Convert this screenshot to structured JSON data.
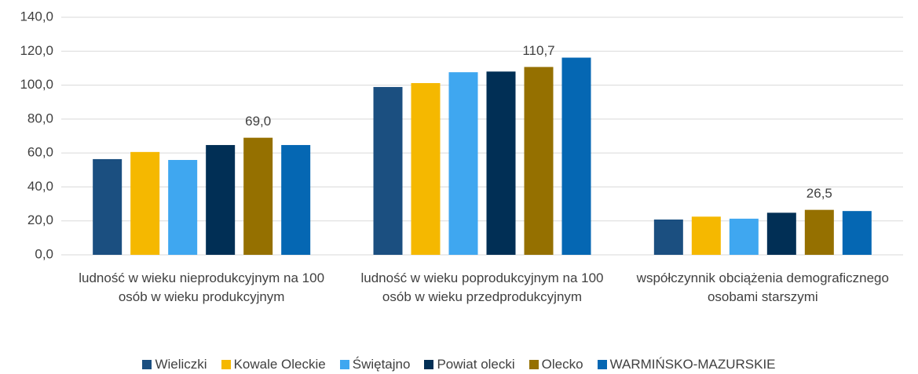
{
  "chart_data": {
    "type": "bar",
    "categories": [
      "ludność w wieku nieprodukcyjnym na 100 osób w wieku produkcyjnym",
      "ludność w wieku poprodukcyjnym na 100 osób w wieku przedprodukcyjnym",
      "współczynnik obciążenia demograficznego osobami starszymi"
    ],
    "series": [
      {
        "name": "Wieliczki",
        "color": "#1b4f80",
        "values": [
          56.4,
          98.9,
          20.8
        ]
      },
      {
        "name": "Kowale Oleckie",
        "color": "#f5b800",
        "values": [
          60.6,
          101.2,
          22.5
        ]
      },
      {
        "name": "Świętajno",
        "color": "#3fa7f0",
        "values": [
          55.9,
          107.6,
          21.3
        ]
      },
      {
        "name": "Powiat olecki",
        "color": "#012f55",
        "values": [
          64.7,
          108.0,
          24.8
        ]
      },
      {
        "name": "Olecko",
        "color": "#957000",
        "values": [
          69.0,
          110.7,
          26.5
        ],
        "value_labels": [
          "69,0",
          "110,7",
          "26,5"
        ]
      },
      {
        "name": "WARMIŃSKO-MAZURSKIE",
        "color": "#0567b3",
        "values": [
          64.7,
          116.2,
          25.8
        ]
      }
    ],
    "ylim": [
      0,
      140
    ],
    "yticks": [
      {
        "value": 0,
        "label": "0,0"
      },
      {
        "value": 20,
        "label": "20,0"
      },
      {
        "value": 40,
        "label": "40,0"
      },
      {
        "value": 60,
        "label": "60,0"
      },
      {
        "value": 80,
        "label": "80,0"
      },
      {
        "value": 100,
        "label": "100,0"
      },
      {
        "value": 120,
        "label": "120,0"
      },
      {
        "value": 140,
        "label": "140,0"
      }
    ],
    "grid": true,
    "legend": "bottom"
  }
}
